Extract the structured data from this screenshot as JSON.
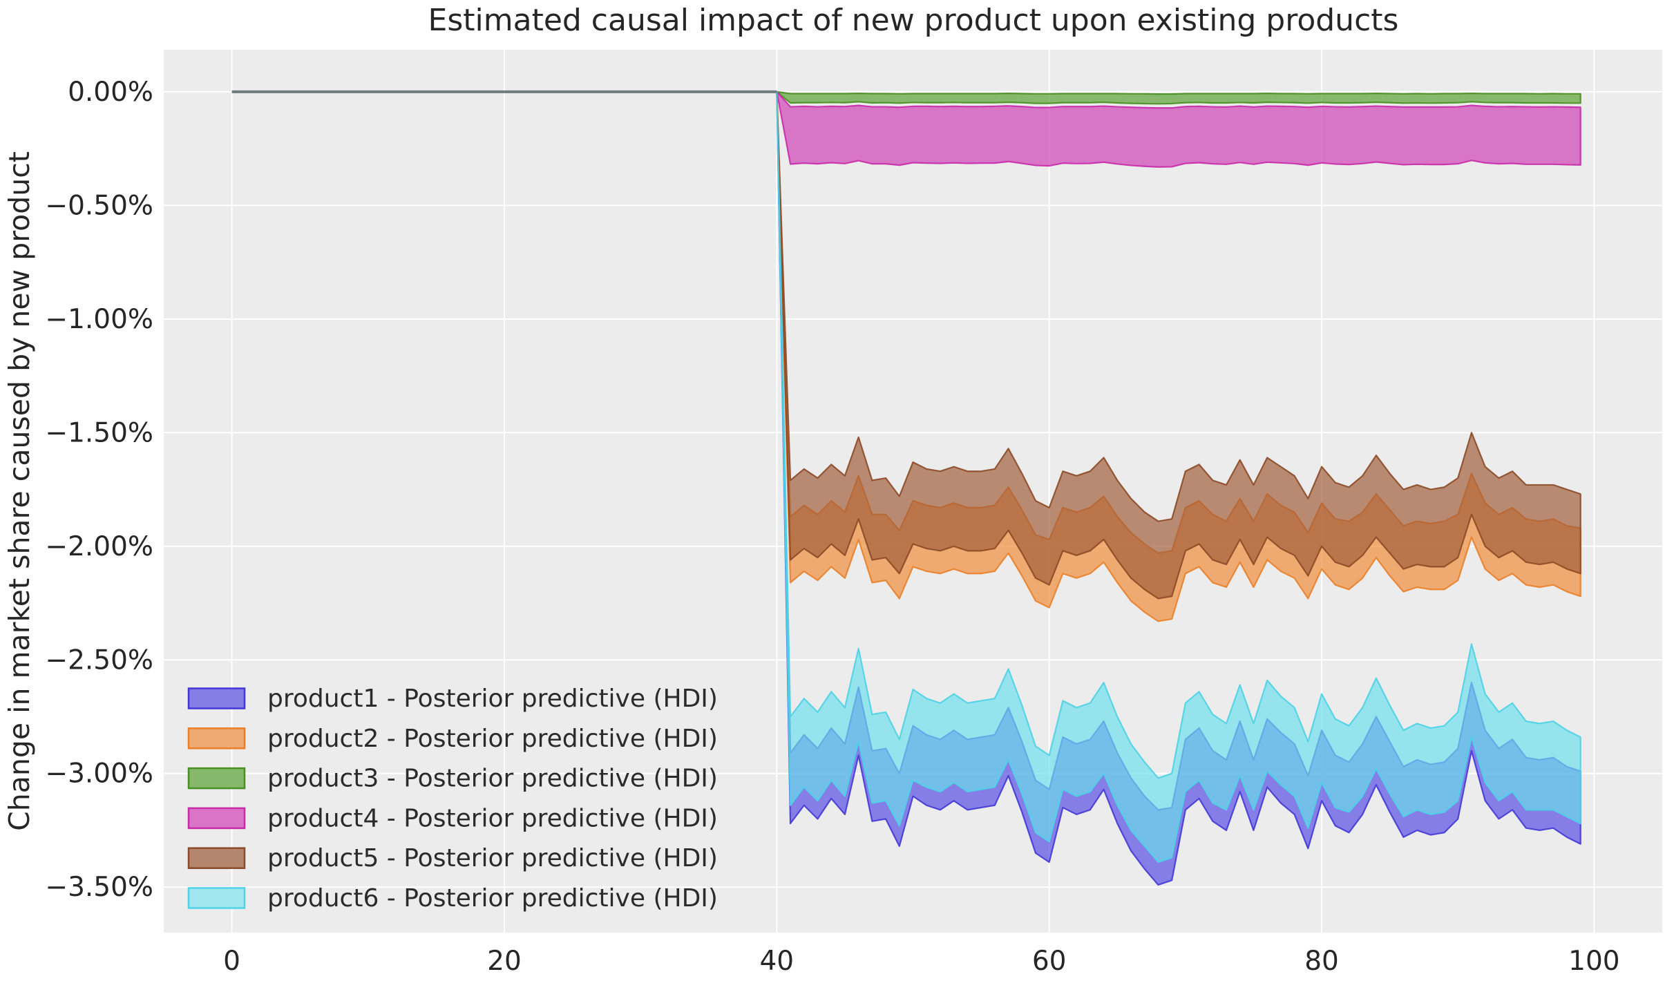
{
  "title": "Estimated causal impact of new product upon existing products",
  "y_axis_label": "Change in market share caused by new product",
  "axes": {
    "plot_background": "#ECECEC",
    "grid_color": "#FFFFFF",
    "text_color": "#262626",
    "x_tick_labels": [
      "0",
      "20",
      "40",
      "60",
      "80",
      "100"
    ],
    "x_tick_values": [
      0,
      20,
      40,
      60,
      80,
      100
    ],
    "y_tick_labels": [
      "0.00%",
      "−0.50%",
      "−1.00%",
      "−1.50%",
      "−2.00%",
      "−2.50%",
      "−3.00%",
      "−3.50%"
    ],
    "y_tick_values": [
      0,
      -0.5,
      -1.0,
      -1.5,
      -2.0,
      -2.5,
      -3.0,
      -3.5
    ],
    "xlim": [
      -5,
      105
    ],
    "ylim": [
      -3.7,
      0.185
    ],
    "grid": true
  },
  "legend": {
    "location": "lower-left",
    "items": [
      {
        "label": "product1 - Posterior predictive (HDI)",
        "swatch_fill": "#857EE7",
        "swatch_edge": "#4338D6"
      },
      {
        "label": "product2 - Posterior predictive (HDI)",
        "swatch_fill": "#EFA972",
        "swatch_edge": "#EA7F28"
      },
      {
        "label": "product3 - Posterior predictive (HDI)",
        "swatch_fill": "#85B86B",
        "swatch_edge": "#4A8F22"
      },
      {
        "label": "product4 - Posterior predictive (HDI)",
        "swatch_fill": "#D974C6",
        "swatch_edge": "#C72BA8"
      },
      {
        "label": "product5 - Posterior predictive (HDI)",
        "swatch_fill": "#B4866E",
        "swatch_edge": "#8C4A26"
      },
      {
        "label": "product6 - Posterior predictive (HDI)",
        "swatch_fill": "#A0E6EF",
        "swatch_edge": "#4ED2E6"
      }
    ]
  },
  "chart_data": {
    "type": "area",
    "title": "Estimated causal impact of new product upon existing products",
    "xlabel": "",
    "ylabel": "Change in market share caused by new product",
    "units": "percent change in market share",
    "pre_period": {
      "x_start": 0,
      "x_end": 40,
      "value": 0,
      "line_color": "#6E7B7E"
    },
    "intervention_x": 40,
    "x_start": 40,
    "x_step": 1,
    "fill_alpha": 0.68,
    "series": [
      {
        "name": "product1 - Posterior predictive (HDI)",
        "color": "#544AE4",
        "edge_color": "#4338D6",
        "upper": [
          0,
          -2.91,
          -2.83,
          -2.89,
          -2.8,
          -2.87,
          -2.62,
          -2.9,
          -2.89,
          -3.0,
          -2.79,
          -2.83,
          -2.85,
          -2.81,
          -2.85,
          -2.84,
          -2.83,
          -2.71,
          -2.86,
          -3.03,
          -3.07,
          -2.84,
          -2.87,
          -2.85,
          -2.77,
          -2.91,
          -3.02,
          -3.1,
          -3.16,
          -3.15,
          -2.85,
          -2.8,
          -2.9,
          -2.94,
          -2.77,
          -2.94,
          -2.76,
          -2.82,
          -2.87,
          -3.01,
          -2.81,
          -2.92,
          -2.95,
          -2.87,
          -2.75,
          -2.86,
          -2.97,
          -2.94,
          -2.96,
          -2.95,
          -2.89,
          -2.6,
          -2.81,
          -2.89,
          -2.85,
          -2.93,
          -2.94,
          -2.93,
          -2.97,
          -2.99
        ],
        "lower": [
          0,
          -3.22,
          -3.14,
          -3.2,
          -3.11,
          -3.18,
          -2.92,
          -3.21,
          -3.2,
          -3.32,
          -3.1,
          -3.14,
          -3.16,
          -3.12,
          -3.16,
          -3.15,
          -3.14,
          -3.01,
          -3.17,
          -3.35,
          -3.39,
          -3.15,
          -3.18,
          -3.16,
          -3.07,
          -3.22,
          -3.34,
          -3.42,
          -3.49,
          -3.47,
          -3.16,
          -3.11,
          -3.21,
          -3.25,
          -3.08,
          -3.25,
          -3.06,
          -3.13,
          -3.18,
          -3.33,
          -3.12,
          -3.23,
          -3.26,
          -3.18,
          -3.05,
          -3.17,
          -3.28,
          -3.25,
          -3.27,
          -3.26,
          -3.2,
          -2.9,
          -3.12,
          -3.2,
          -3.16,
          -3.24,
          -3.25,
          -3.24,
          -3.28,
          -3.31
        ]
      },
      {
        "name": "product2 - Posterior predictive (HDI)",
        "color": "#F08A38",
        "edge_color": "#EA7F28",
        "upper": [
          0,
          -1.87,
          -1.82,
          -1.86,
          -1.8,
          -1.85,
          -1.69,
          -1.86,
          -1.86,
          -1.93,
          -1.8,
          -1.82,
          -1.83,
          -1.81,
          -1.83,
          -1.83,
          -1.82,
          -1.74,
          -1.84,
          -1.95,
          -1.97,
          -1.83,
          -1.85,
          -1.83,
          -1.78,
          -1.87,
          -1.94,
          -1.99,
          -2.03,
          -2.02,
          -1.83,
          -1.8,
          -1.86,
          -1.89,
          -1.79,
          -1.89,
          -1.77,
          -1.82,
          -1.85,
          -1.94,
          -1.81,
          -1.88,
          -1.89,
          -1.85,
          -1.77,
          -1.84,
          -1.91,
          -1.89,
          -1.9,
          -1.89,
          -1.86,
          -1.68,
          -1.81,
          -1.86,
          -1.83,
          -1.88,
          -1.89,
          -1.88,
          -1.91,
          -1.92
        ],
        "lower": [
          0,
          -2.16,
          -2.11,
          -2.15,
          -2.09,
          -2.14,
          -1.97,
          -2.16,
          -2.15,
          -2.23,
          -2.09,
          -2.11,
          -2.12,
          -2.1,
          -2.12,
          -2.12,
          -2.11,
          -2.03,
          -2.13,
          -2.24,
          -2.27,
          -2.12,
          -2.14,
          -2.12,
          -2.07,
          -2.16,
          -2.24,
          -2.29,
          -2.33,
          -2.32,
          -2.12,
          -2.09,
          -2.16,
          -2.18,
          -2.07,
          -2.18,
          -2.06,
          -2.11,
          -2.14,
          -2.23,
          -2.1,
          -2.17,
          -2.19,
          -2.14,
          -2.05,
          -2.13,
          -2.2,
          -2.18,
          -2.19,
          -2.19,
          -2.15,
          -1.96,
          -2.1,
          -2.15,
          -2.12,
          -2.17,
          -2.18,
          -2.17,
          -2.2,
          -2.22
        ]
      },
      {
        "name": "product3 - Posterior predictive (HDI)",
        "color": "#55A02E",
        "edge_color": "#4A8F22",
        "upper": [
          0,
          -0.008,
          -0.008,
          -0.008,
          -0.008,
          -0.008,
          -0.007,
          -0.008,
          -0.008,
          -0.009,
          -0.008,
          -0.008,
          -0.008,
          -0.008,
          -0.008,
          -0.008,
          -0.008,
          -0.007,
          -0.008,
          -0.009,
          -0.009,
          -0.008,
          -0.008,
          -0.008,
          -0.008,
          -0.008,
          -0.009,
          -0.009,
          -0.01,
          -0.01,
          -0.008,
          -0.008,
          -0.008,
          -0.008,
          -0.008,
          -0.008,
          -0.007,
          -0.008,
          -0.008,
          -0.009,
          -0.008,
          -0.008,
          -0.008,
          -0.008,
          -0.007,
          -0.008,
          -0.009,
          -0.008,
          -0.009,
          -0.008,
          -0.008,
          -0.007,
          -0.008,
          -0.008,
          -0.008,
          -0.008,
          -0.009,
          -0.008,
          -0.009,
          -0.009
        ],
        "lower": [
          0,
          -0.049,
          -0.048,
          -0.048,
          -0.047,
          -0.048,
          -0.044,
          -0.049,
          -0.048,
          -0.05,
          -0.047,
          -0.048,
          -0.048,
          -0.047,
          -0.048,
          -0.048,
          -0.048,
          -0.046,
          -0.048,
          -0.051,
          -0.051,
          -0.048,
          -0.048,
          -0.048,
          -0.046,
          -0.049,
          -0.051,
          -0.052,
          -0.053,
          -0.052,
          -0.048,
          -0.047,
          -0.049,
          -0.049,
          -0.047,
          -0.049,
          -0.046,
          -0.047,
          -0.048,
          -0.05,
          -0.047,
          -0.049,
          -0.049,
          -0.048,
          -0.046,
          -0.048,
          -0.05,
          -0.049,
          -0.05,
          -0.049,
          -0.048,
          -0.044,
          -0.047,
          -0.048,
          -0.048,
          -0.049,
          -0.049,
          -0.049,
          -0.05,
          -0.05
        ]
      },
      {
        "name": "product4 - Posterior predictive (HDI)",
        "color": "#D03CB4",
        "edge_color": "#C72BA8",
        "upper": [
          0,
          -0.066,
          -0.064,
          -0.066,
          -0.064,
          -0.065,
          -0.06,
          -0.066,
          -0.066,
          -0.068,
          -0.064,
          -0.064,
          -0.065,
          -0.064,
          -0.065,
          -0.065,
          -0.064,
          -0.062,
          -0.065,
          -0.069,
          -0.069,
          -0.065,
          -0.065,
          -0.065,
          -0.063,
          -0.066,
          -0.068,
          -0.07,
          -0.071,
          -0.071,
          -0.065,
          -0.064,
          -0.066,
          -0.067,
          -0.063,
          -0.067,
          -0.063,
          -0.064,
          -0.065,
          -0.068,
          -0.064,
          -0.066,
          -0.067,
          -0.065,
          -0.063,
          -0.065,
          -0.067,
          -0.067,
          -0.067,
          -0.067,
          -0.066,
          -0.06,
          -0.064,
          -0.066,
          -0.065,
          -0.066,
          -0.067,
          -0.066,
          -0.067,
          -0.068
        ],
        "lower": [
          0,
          -0.318,
          -0.314,
          -0.317,
          -0.312,
          -0.316,
          -0.303,
          -0.317,
          -0.317,
          -0.323,
          -0.312,
          -0.314,
          -0.315,
          -0.313,
          -0.315,
          -0.314,
          -0.314,
          -0.307,
          -0.315,
          -0.324,
          -0.326,
          -0.314,
          -0.316,
          -0.315,
          -0.31,
          -0.318,
          -0.324,
          -0.328,
          -0.331,
          -0.33,
          -0.315,
          -0.312,
          -0.317,
          -0.319,
          -0.311,
          -0.319,
          -0.31,
          -0.313,
          -0.316,
          -0.323,
          -0.313,
          -0.318,
          -0.32,
          -0.316,
          -0.309,
          -0.315,
          -0.321,
          -0.319,
          -0.32,
          -0.32,
          -0.317,
          -0.302,
          -0.313,
          -0.317,
          -0.315,
          -0.319,
          -0.319,
          -0.319,
          -0.321,
          -0.322
        ]
      },
      {
        "name": "product5 - Posterior predictive (HDI)",
        "color": "#A05C38",
        "edge_color": "#8C4A26",
        "upper": [
          0,
          -1.71,
          -1.66,
          -1.7,
          -1.64,
          -1.69,
          -1.52,
          -1.71,
          -1.7,
          -1.78,
          -1.63,
          -1.66,
          -1.67,
          -1.65,
          -1.67,
          -1.67,
          -1.66,
          -1.57,
          -1.68,
          -1.8,
          -1.83,
          -1.67,
          -1.69,
          -1.67,
          -1.61,
          -1.71,
          -1.79,
          -1.85,
          -1.89,
          -1.88,
          -1.67,
          -1.64,
          -1.71,
          -1.73,
          -1.62,
          -1.73,
          -1.61,
          -1.65,
          -1.69,
          -1.79,
          -1.65,
          -1.72,
          -1.74,
          -1.69,
          -1.6,
          -1.68,
          -1.75,
          -1.73,
          -1.75,
          -1.74,
          -1.7,
          -1.5,
          -1.65,
          -1.7,
          -1.67,
          -1.73,
          -1.73,
          -1.73,
          -1.75,
          -1.77
        ],
        "lower": [
          0,
          -2.06,
          -2.01,
          -2.05,
          -1.99,
          -2.04,
          -1.88,
          -2.06,
          -2.05,
          -2.12,
          -1.99,
          -2.01,
          -2.02,
          -2.0,
          -2.02,
          -2.02,
          -2.01,
          -1.93,
          -2.03,
          -2.14,
          -2.17,
          -2.02,
          -2.04,
          -2.02,
          -1.97,
          -2.06,
          -2.14,
          -2.19,
          -2.23,
          -2.22,
          -2.02,
          -1.99,
          -2.06,
          -2.08,
          -1.97,
          -2.08,
          -1.96,
          -2.01,
          -2.04,
          -2.13,
          -2.0,
          -2.07,
          -2.09,
          -2.04,
          -1.96,
          -2.03,
          -2.1,
          -2.08,
          -2.09,
          -2.09,
          -2.05,
          -1.86,
          -2.0,
          -2.05,
          -2.02,
          -2.07,
          -2.08,
          -2.07,
          -2.1,
          -2.12
        ]
      },
      {
        "name": "product6 - Posterior predictive (HDI)",
        "color": "#6CDEEC",
        "edge_color": "#4ED2E6",
        "upper": [
          0,
          -2.75,
          -2.67,
          -2.73,
          -2.64,
          -2.71,
          -2.45,
          -2.74,
          -2.73,
          -2.85,
          -2.63,
          -2.67,
          -2.69,
          -2.65,
          -2.69,
          -2.68,
          -2.67,
          -2.54,
          -2.7,
          -2.88,
          -2.92,
          -2.68,
          -2.71,
          -2.69,
          -2.6,
          -2.75,
          -2.87,
          -2.95,
          -3.02,
          -3.0,
          -2.69,
          -2.64,
          -2.74,
          -2.78,
          -2.61,
          -2.78,
          -2.59,
          -2.66,
          -2.71,
          -2.86,
          -2.65,
          -2.76,
          -2.79,
          -2.71,
          -2.58,
          -2.7,
          -2.81,
          -2.78,
          -2.8,
          -2.79,
          -2.73,
          -2.43,
          -2.65,
          -2.73,
          -2.69,
          -2.77,
          -2.78,
          -2.77,
          -2.81,
          -2.84
        ],
        "lower": [
          0,
          -3.14,
          -3.06,
          -3.12,
          -3.03,
          -3.1,
          -2.86,
          -3.13,
          -3.12,
          -3.23,
          -3.03,
          -3.06,
          -3.08,
          -3.04,
          -3.08,
          -3.07,
          -3.06,
          -2.94,
          -3.09,
          -3.26,
          -3.3,
          -3.07,
          -3.1,
          -3.08,
          -3.0,
          -3.14,
          -3.25,
          -3.32,
          -3.39,
          -3.37,
          -3.08,
          -3.03,
          -3.13,
          -3.16,
          -3.01,
          -3.16,
          -2.99,
          -3.05,
          -3.1,
          -3.24,
          -3.04,
          -3.15,
          -3.17,
          -3.1,
          -2.98,
          -3.09,
          -3.19,
          -3.16,
          -3.18,
          -3.17,
          -3.12,
          -2.84,
          -3.04,
          -3.12,
          -3.08,
          -3.16,
          -3.16,
          -3.16,
          -3.19,
          -3.22
        ]
      }
    ]
  }
}
